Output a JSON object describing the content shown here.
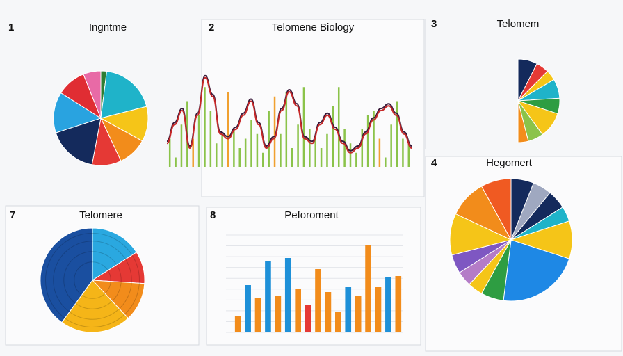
{
  "chart_data": [
    {
      "type": "pie",
      "label": "1",
      "title": "Ingntme",
      "values": [
        2,
        19,
        12,
        10,
        10,
        17,
        14,
        10,
        6
      ],
      "colors": [
        "#2e7d32",
        "#1fb3c9",
        "#f5c518",
        "#f28c1b",
        "#e53935",
        "#142a5c",
        "#29a3e0",
        "#e02d33",
        "#e86aa6"
      ]
    },
    {
      "type": "combo",
      "label": "2",
      "title": "Telomene Biology",
      "bar_values": [
        30,
        10,
        45,
        70,
        30,
        55,
        85,
        60,
        25,
        35,
        80,
        40,
        20,
        30,
        50,
        35,
        15,
        60,
        75,
        35,
        80,
        20,
        45,
        85,
        40,
        30,
        20,
        35,
        65,
        85,
        40,
        25,
        15,
        40,
        55,
        60,
        30,
        10,
        45,
        70,
        30,
        25
      ],
      "bar_colors": [
        "#8bc34a",
        "#8bc34a",
        "#8bc34a",
        "#8bc34a",
        "#f0a030",
        "#8bc34a",
        "#8bc34a",
        "#8bc34a",
        "#8bc34a",
        "#8bc34a",
        "#f0a030",
        "#8bc34a",
        "#8bc34a",
        "#8bc34a",
        "#8bc34a",
        "#8bc34a",
        "#8bc34a",
        "#8bc34a",
        "#f0a030",
        "#8bc34a",
        "#8bc34a",
        "#8bc34a",
        "#8bc34a",
        "#8bc34a",
        "#8bc34a",
        "#8bc34a",
        "#8bc34a",
        "#8bc34a",
        "#8bc34a",
        "#8bc34a",
        "#8bc34a",
        "#8bc34a",
        "#8bc34a",
        "#8bc34a",
        "#8bc34a",
        "#8bc34a",
        "#f0a030",
        "#8bc34a",
        "#8bc34a",
        "#8bc34a",
        "#8bc34a",
        "#8bc34a"
      ],
      "line_values": [
        25,
        45,
        60,
        20,
        55,
        95,
        75,
        35,
        30,
        40,
        55,
        70,
        45,
        20,
        30,
        60,
        80,
        65,
        30,
        25,
        45,
        55,
        40,
        25,
        15,
        20,
        35,
        50,
        60,
        65,
        55,
        35,
        20
      ],
      "line_color": "#c62828",
      "ylim": [
        0,
        100
      ]
    },
    {
      "type": "pie",
      "half": true,
      "label": "3",
      "title": "Telomem",
      "values": [
        15,
        10,
        8,
        15,
        12,
        20,
        12,
        8
      ],
      "colors": [
        "#142a5c",
        "#e53935",
        "#f5c518",
        "#1fb3c9",
        "#2e9d42",
        "#f5c518",
        "#8bc34a",
        "#f28c1b"
      ]
    },
    {
      "type": "pie",
      "label": "4",
      "title": "Hegomert",
      "values": [
        6,
        5,
        5,
        4,
        10,
        22,
        6,
        4,
        4,
        5,
        11,
        10,
        8
      ],
      "colors": [
        "#142a5c",
        "#9fa8c0",
        "#142a5c",
        "#1fb3c9",
        "#f5c518",
        "#1e88e5",
        "#2e9d42",
        "#f5c518",
        "#b47cc7",
        "#7e57c2",
        "#f5c518",
        "#f28c1b",
        "#f05a22"
      ]
    },
    {
      "type": "pie",
      "rings": true,
      "label": "7",
      "title": "Telomere",
      "values": [
        16,
        10,
        12,
        22,
        40
      ],
      "colors": [
        "#2aa8e0",
        "#e53935",
        "#f28c1b",
        "#f5b518",
        "#1a4fa0"
      ]
    },
    {
      "type": "bar",
      "label": "8",
      "title": "Peforoment",
      "values": [
        23,
        68,
        50,
        103,
        53,
        107,
        63,
        40,
        91,
        58,
        30,
        65,
        52,
        126,
        65,
        79,
        81
      ],
      "colors": [
        "#f28c1b",
        "#1e90d8",
        "#f28c1b",
        "#1e90d8",
        "#f28c1b",
        "#1e90d8",
        "#f28c1b",
        "#e53935",
        "#f28c1b",
        "#f28c1b",
        "#f28c1b",
        "#1e90d8",
        "#f28c1b",
        "#f28c1b",
        "#f28c1b",
        "#1e90d8",
        "#f28c1b"
      ],
      "ylim": [
        0,
        140
      ],
      "grid": true
    }
  ]
}
